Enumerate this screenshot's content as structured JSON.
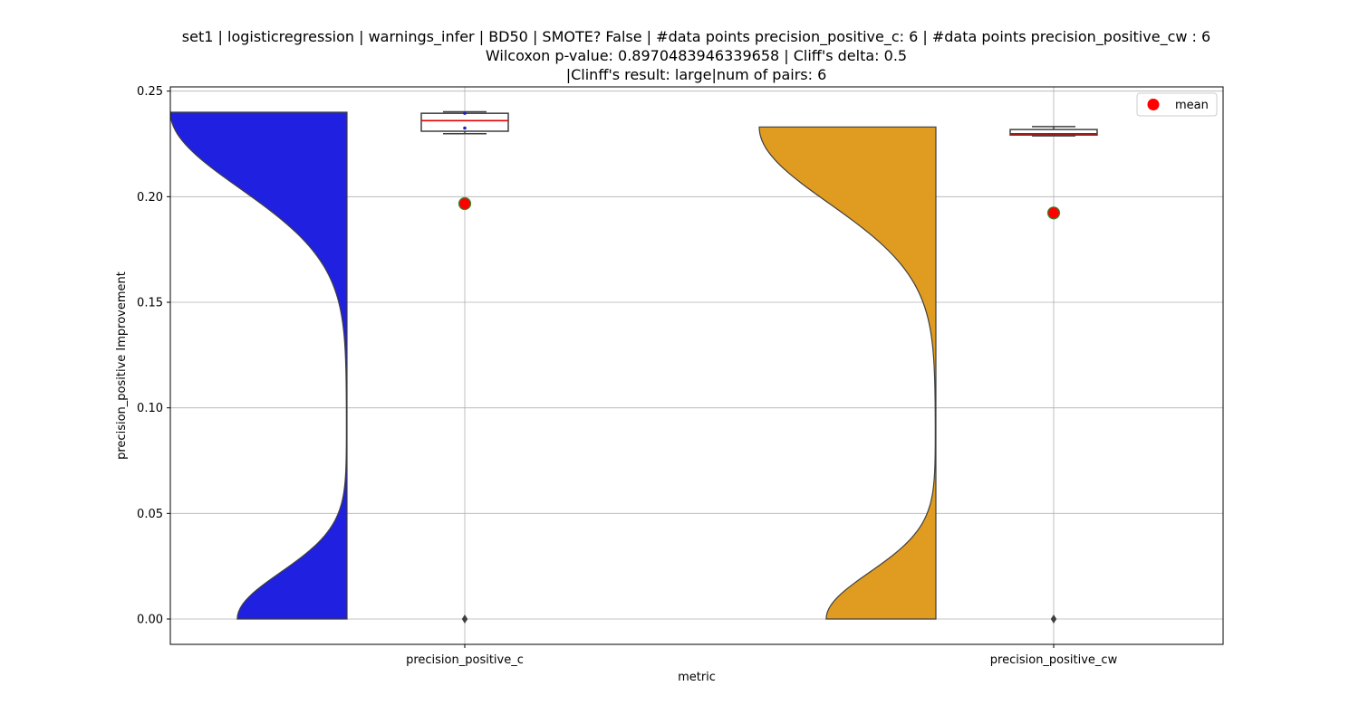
{
  "chart_data": {
    "type": "violin",
    "title_lines": [
      "set1 | logisticregression | warnings_infer | BD50 | SMOTE? False | #data points precision_positive_c: 6 | #data points precision_positive_cw : 6",
      "Wilcoxon p-value: 0.8970483946339658 | Cliff's delta: 0.5",
      "|Clinff's result: large|num of pairs: 6"
    ],
    "xlabel": "metric",
    "ylabel": "precision_positive Improvement",
    "categories": [
      "precision_positive_c",
      "precision_positive_cw"
    ],
    "ylim": [
      -0.012,
      0.252
    ],
    "yticks": [
      0.0,
      0.05,
      0.1,
      0.15,
      0.2,
      0.25
    ],
    "ytick_labels": [
      "0.00",
      "0.05",
      "0.10",
      "0.15",
      "0.20",
      "0.25"
    ],
    "grid": true,
    "legend": {
      "position": "top-right",
      "entries": [
        {
          "label": "mean",
          "color": "#ff0000"
        }
      ]
    },
    "series": [
      {
        "category": "precision_positive_c",
        "color": "#2020e0",
        "range": [
          0.0,
          0.24
        ],
        "box": {
          "q1": 0.231,
          "median": 0.236,
          "q3": 0.2395,
          "whisker_low": 0.2298,
          "whisker_high": 0.2402
        },
        "outliers": [
          0.0
        ],
        "points": [
          0.2395,
          0.2325
        ],
        "mean": 0.1967
      },
      {
        "category": "precision_positive_cw",
        "color": "#e09c20",
        "range": [
          0.0,
          0.233
        ],
        "box": {
          "q1": 0.2292,
          "median": 0.2298,
          "q3": 0.2318,
          "whisker_low": 0.2288,
          "whisker_high": 0.2332
        },
        "outliers": [
          0.0
        ],
        "points": [],
        "mean": 0.1923
      }
    ]
  }
}
